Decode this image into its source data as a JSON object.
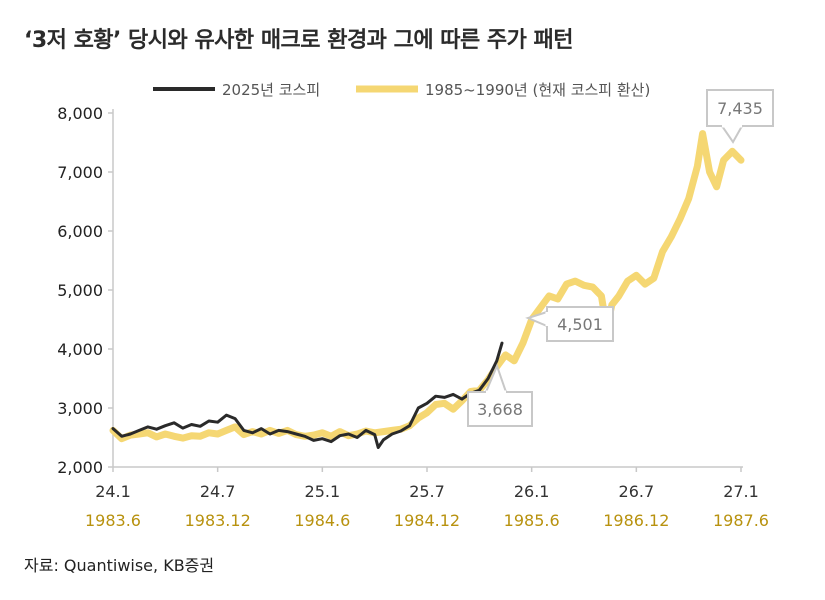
{
  "title": "‘3저 호황’ 당시와 유사한 매크로 환경과 그에 따른 주가 패턴",
  "source": "자료: Quantiwise, KB증권",
  "colors": {
    "series_2025": "#2a2a2a",
    "series_1985": "#f5d773",
    "axis": "#c8c8c8",
    "callout_border": "#c8c8c8",
    "x_label_secondary": "#b8920f"
  },
  "chart_data": {
    "type": "line",
    "title": "‘3저 호황’ 당시와 유사한 매크로 환경과 그에 따른 주가 패턴",
    "ylim": [
      2000,
      8000
    ],
    "yticks": [
      "2,000",
      "3,000",
      "4,000",
      "5,000",
      "6,000",
      "7,000",
      "8,000"
    ],
    "yticks_values": [
      2000,
      3000,
      4000,
      5000,
      6000,
      7000,
      8000
    ],
    "xlim": [
      0,
      36
    ],
    "xticks": [
      {
        "x": 0,
        "label": "24.1",
        "label2": "1983.6"
      },
      {
        "x": 6,
        "label": "24.7",
        "label2": "1983.12"
      },
      {
        "x": 12,
        "label": "25.1",
        "label2": "1984.6"
      },
      {
        "x": 18,
        "label": "25.7",
        "label2": "1984.12"
      },
      {
        "x": 24,
        "label": "26.1",
        "label2": "1985.6"
      },
      {
        "x": 30,
        "label": "26.7",
        "label2": "1986.12"
      },
      {
        "x": 36,
        "label": "27.1",
        "label2": "1987.6"
      }
    ],
    "grid": false,
    "legend_position": "top",
    "series": [
      {
        "name": "2025년 코스피",
        "color": "#2a2a2a",
        "points": [
          [
            0,
            2650
          ],
          [
            0.5,
            2520
          ],
          [
            1,
            2560
          ],
          [
            1.5,
            2620
          ],
          [
            2,
            2680
          ],
          [
            2.5,
            2640
          ],
          [
            3,
            2700
          ],
          [
            3.5,
            2750
          ],
          [
            4,
            2660
          ],
          [
            4.5,
            2720
          ],
          [
            5,
            2690
          ],
          [
            5.5,
            2780
          ],
          [
            6,
            2760
          ],
          [
            6.5,
            2880
          ],
          [
            7,
            2820
          ],
          [
            7.5,
            2620
          ],
          [
            8,
            2580
          ],
          [
            8.5,
            2650
          ],
          [
            9,
            2560
          ],
          [
            9.5,
            2620
          ],
          [
            10,
            2600
          ],
          [
            10.5,
            2560
          ],
          [
            11,
            2520
          ],
          [
            11.5,
            2450
          ],
          [
            12,
            2480
          ],
          [
            12.5,
            2430
          ],
          [
            13,
            2530
          ],
          [
            13.5,
            2560
          ],
          [
            14,
            2500
          ],
          [
            14.5,
            2620
          ],
          [
            15,
            2550
          ],
          [
            15.2,
            2330
          ],
          [
            15.5,
            2460
          ],
          [
            16,
            2560
          ],
          [
            16.5,
            2610
          ],
          [
            17,
            2700
          ],
          [
            17.5,
            3000
          ],
          [
            18,
            3080
          ],
          [
            18.5,
            3200
          ],
          [
            19,
            3180
          ],
          [
            19.5,
            3230
          ],
          [
            20,
            3150
          ],
          [
            20.5,
            3250
          ],
          [
            21,
            3300
          ],
          [
            21.5,
            3500
          ],
          [
            22,
            3800
          ],
          [
            22.3,
            4100
          ]
        ]
      },
      {
        "name": "1985~1990년 (현재 코스피 환산)",
        "color": "#f5d773",
        "points": [
          [
            0,
            2620
          ],
          [
            0.5,
            2480
          ],
          [
            1,
            2540
          ],
          [
            1.5,
            2560
          ],
          [
            2,
            2580
          ],
          [
            2.5,
            2510
          ],
          [
            3,
            2560
          ],
          [
            3.5,
            2520
          ],
          [
            4,
            2490
          ],
          [
            4.5,
            2530
          ],
          [
            5,
            2520
          ],
          [
            5.5,
            2580
          ],
          [
            6,
            2560
          ],
          [
            6.5,
            2620
          ],
          [
            7,
            2680
          ],
          [
            7.5,
            2550
          ],
          [
            8,
            2600
          ],
          [
            8.5,
            2560
          ],
          [
            9,
            2620
          ],
          [
            9.5,
            2570
          ],
          [
            10,
            2620
          ],
          [
            10.5,
            2550
          ],
          [
            11,
            2520
          ],
          [
            11.5,
            2540
          ],
          [
            12,
            2580
          ],
          [
            12.5,
            2520
          ],
          [
            13,
            2600
          ],
          [
            13.5,
            2530
          ],
          [
            14,
            2560
          ],
          [
            14.5,
            2610
          ],
          [
            15,
            2580
          ],
          [
            15.5,
            2600
          ],
          [
            16,
            2620
          ],
          [
            16.5,
            2640
          ],
          [
            17,
            2700
          ],
          [
            17.5,
            2830
          ],
          [
            18,
            2920
          ],
          [
            18.5,
            3060
          ],
          [
            19,
            3080
          ],
          [
            19.5,
            2980
          ],
          [
            20,
            3120
          ],
          [
            20.5,
            3280
          ],
          [
            21,
            3300
          ],
          [
            21.5,
            3480
          ],
          [
            22,
            3700
          ],
          [
            22.5,
            3900
          ],
          [
            23,
            3800
          ],
          [
            23.5,
            4100
          ],
          [
            24,
            4500
          ],
          [
            24.5,
            4700
          ],
          [
            25,
            4900
          ],
          [
            25.5,
            4850
          ],
          [
            26,
            5100
          ],
          [
            26.5,
            5150
          ],
          [
            27,
            5080
          ],
          [
            27.5,
            5050
          ],
          [
            28,
            4900
          ],
          [
            28.3,
            4350
          ],
          [
            28.6,
            4750
          ],
          [
            29,
            4900
          ],
          [
            29.5,
            5150
          ],
          [
            30,
            5250
          ],
          [
            30.5,
            5100
          ],
          [
            31,
            5200
          ],
          [
            31.5,
            5650
          ],
          [
            32,
            5900
          ],
          [
            32.5,
            6200
          ],
          [
            33,
            6550
          ],
          [
            33.5,
            7100
          ],
          [
            33.8,
            7650
          ],
          [
            34.2,
            7000
          ],
          [
            34.6,
            6750
          ],
          [
            35,
            7200
          ],
          [
            35.5,
            7350
          ],
          [
            36,
            7200
          ]
        ]
      }
    ],
    "annotations": [
      {
        "label": "3,668",
        "value": 3668
      },
      {
        "label": "4,501",
        "value": 4501
      },
      {
        "label": "7,435",
        "value": 7435
      }
    ]
  }
}
